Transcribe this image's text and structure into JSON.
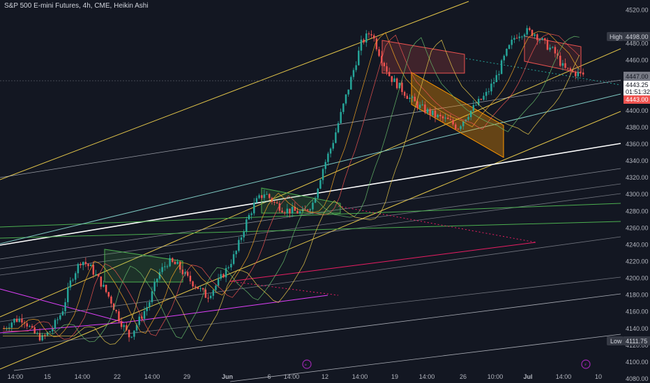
{
  "header": {
    "title": "S&P 500 E-mini Futures, 4h, CME, Heikin Ashi"
  },
  "chart_data": {
    "type": "candlestick",
    "title": "S&P 500 E-mini Futures, 4h, CME, Heikin Ashi",
    "ylim": [
      4075,
      4532
    ],
    "y_ticks": [
      4520,
      4480,
      4460,
      4400,
      4380,
      4360,
      4340,
      4320,
      4300,
      4280,
      4260,
      4240,
      4220,
      4200,
      4180,
      4160,
      4140,
      4120,
      4100,
      4080
    ],
    "x_ticks": [
      "14:00",
      "15",
      "14:00",
      "22",
      "14:00",
      "29",
      "Jun",
      "6",
      "14:00",
      "12",
      "14:00",
      "19",
      "14:00",
      "26",
      "10:00",
      "Jul",
      "14:00",
      "10"
    ],
    "price_labels": {
      "high_label": "High",
      "high_value": "4498.00",
      "level_1": "4447.00",
      "current_price": "4443.25",
      "countdown": "01:51:32",
      "level_2": "4443.00",
      "low_label": "Low",
      "low_value": "4111.75"
    },
    "candles_path": [
      4140,
      4150,
      4152,
      4135,
      4128,
      4140,
      4160,
      4200,
      4222,
      4212,
      4195,
      4175,
      4150,
      4130,
      4150,
      4170,
      4205,
      4220,
      4215,
      4200,
      4190,
      4178,
      4192,
      4210,
      4230,
      4265,
      4290,
      4302,
      4290,
      4282,
      4280,
      4278,
      4290,
      4330,
      4360,
      4400,
      4440,
      4480,
      4495,
      4465,
      4440,
      4428,
      4415,
      4405,
      4398,
      4392,
      4388,
      4380,
      4395,
      4408,
      4420,
      4440,
      4468,
      4490,
      4495,
      4492,
      4480,
      4470,
      4450,
      4445,
      4443
    ],
    "colors": {
      "up": "#26a69a",
      "down": "#ef5350",
      "background": "#131722",
      "grid_text": "#b2b5be"
    }
  }
}
